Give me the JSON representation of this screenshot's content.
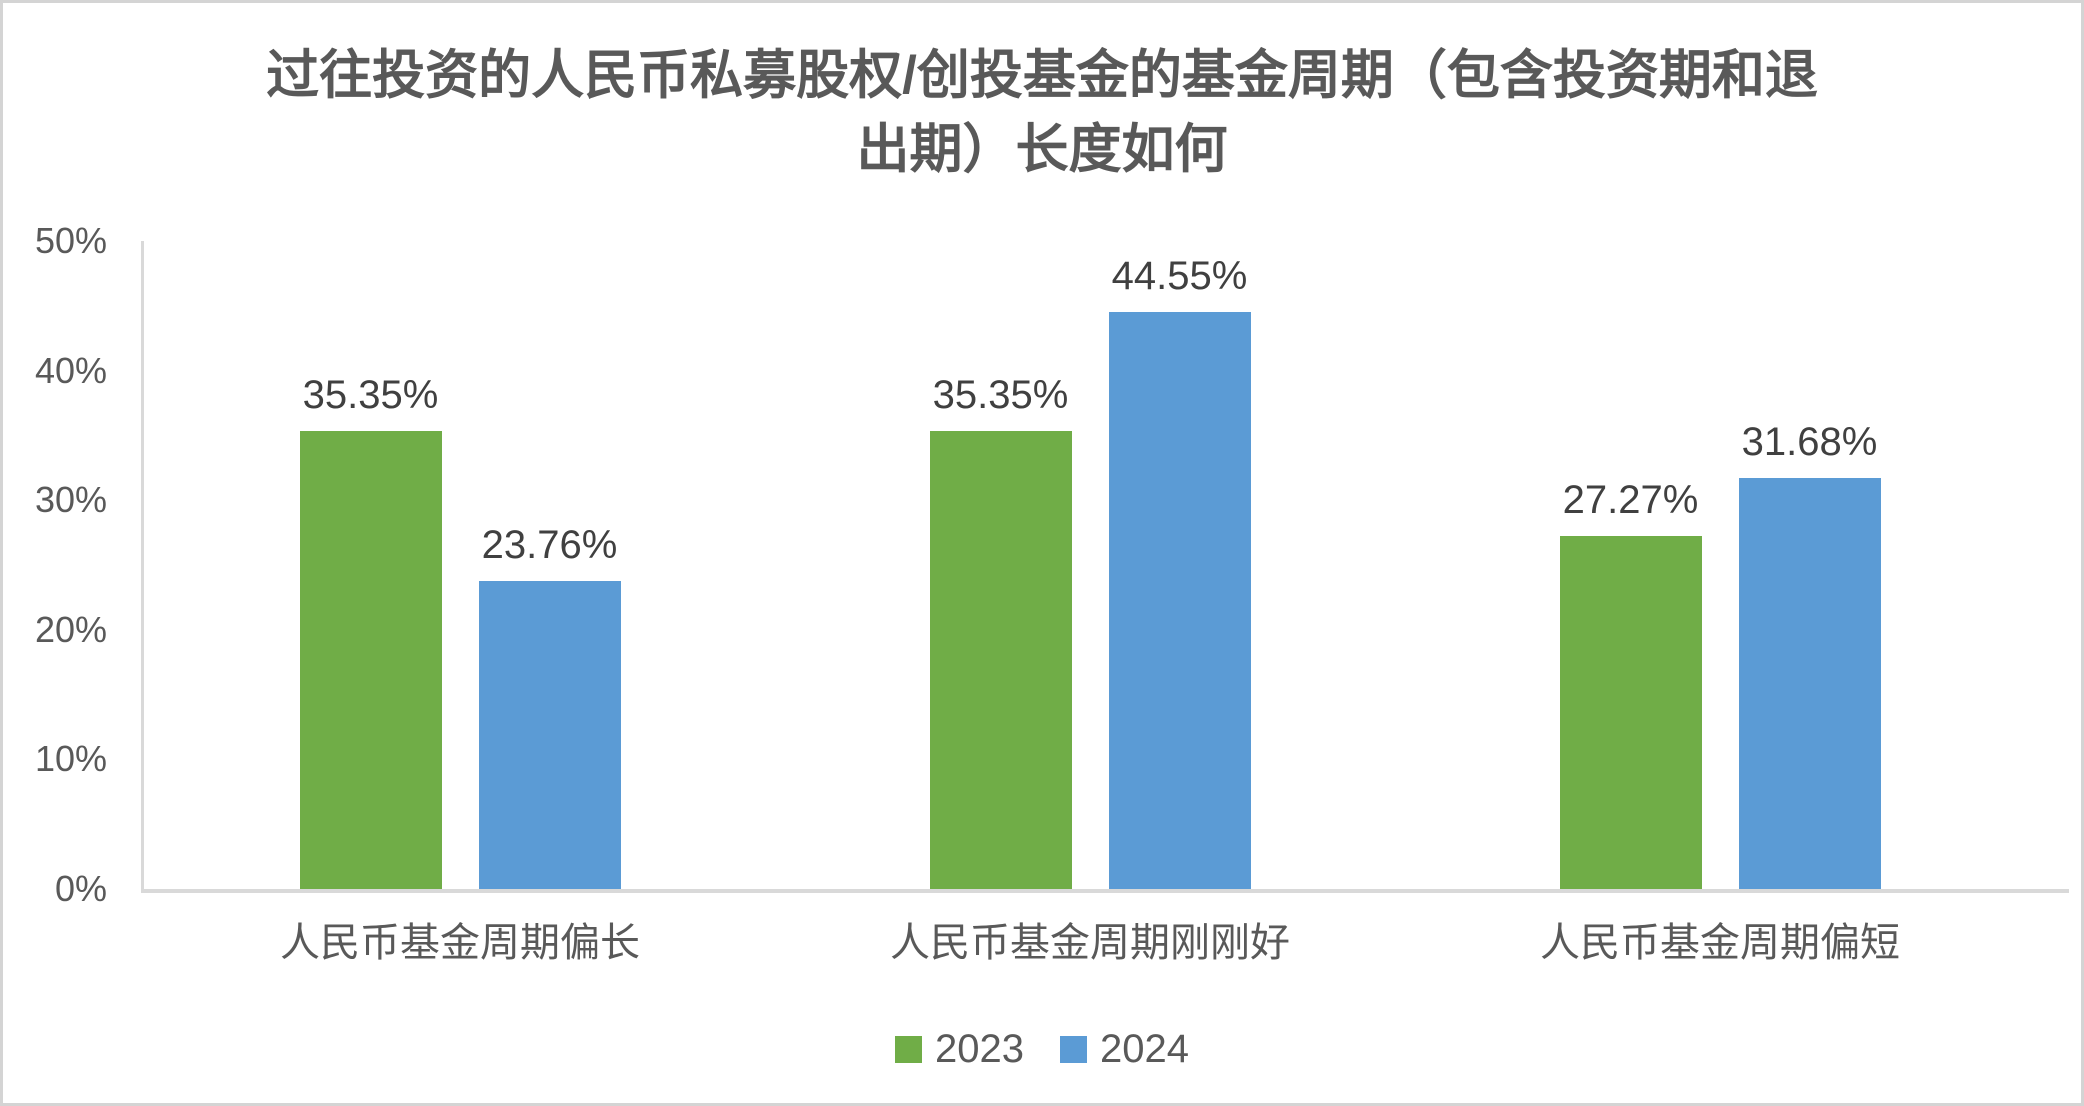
{
  "chart_data": {
    "type": "bar",
    "title": "过往投资的人民币私募股权/创投基金的基金周期（包含投资期和退出期）长度如何",
    "title_lines": [
      "过往投资的人民币私募股权/创投基金的基金周期（包含投资期和退",
      "出期）长度如何"
    ],
    "categories": [
      "人民币基金周期偏长",
      "人民币基金周期刚刚好",
      "人民币基金周期偏短"
    ],
    "series": [
      {
        "name": "2023",
        "color": "#70AD47",
        "values": [
          35.35,
          35.35,
          27.27
        ]
      },
      {
        "name": "2024",
        "color": "#5B9BD5",
        "values": [
          23.76,
          44.55,
          31.68
        ]
      }
    ],
    "value_label_suffix": "%",
    "xlabel": "",
    "ylabel": "",
    "ylim": [
      0,
      50
    ],
    "yticks": [
      "0%",
      "10%",
      "20%",
      "30%",
      "40%",
      "50%"
    ],
    "grid": false,
    "legend_position": "bottom",
    "axis_color": "#D9D9D9"
  }
}
